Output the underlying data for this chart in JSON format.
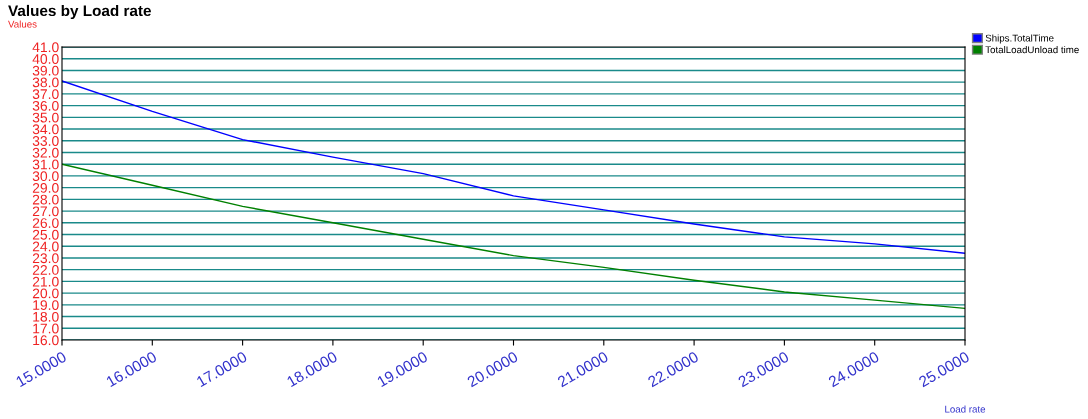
{
  "chart_data": {
    "type": "line",
    "title": "Values by Load rate",
    "ylabel": "Values",
    "xlabel": "Load rate",
    "x": [
      15,
      16,
      17,
      18,
      19,
      20,
      21,
      22,
      23,
      24,
      25
    ],
    "series": [
      {
        "name": "Ships.TotalTime",
        "color": "#0000ff",
        "values": [
          38.1,
          35.5,
          33.1,
          31.6,
          30.2,
          28.3,
          27.1,
          25.9,
          24.8,
          24.2,
          23.4
        ]
      },
      {
        "name": "TotalLoadUnload time",
        "color": "#008000",
        "values": [
          31.0,
          29.2,
          27.4,
          26.0,
          24.6,
          23.2,
          22.2,
          21.1,
          20.1,
          19.4,
          18.7
        ]
      }
    ],
    "xlim": [
      15,
      25
    ],
    "xticks": [
      {
        "value": 15,
        "label": "15.0000"
      },
      {
        "value": 16,
        "label": "16.0000"
      },
      {
        "value": 17,
        "label": "17.0000"
      },
      {
        "value": 18,
        "label": "18.0000"
      },
      {
        "value": 19,
        "label": "19.0000"
      },
      {
        "value": 20,
        "label": "20.0000"
      },
      {
        "value": 21,
        "label": "21.0000"
      },
      {
        "value": 22,
        "label": "22.0000"
      },
      {
        "value": 23,
        "label": "23.0000"
      },
      {
        "value": 24,
        "label": "24.0000"
      },
      {
        "value": 25,
        "label": "25.0000"
      }
    ],
    "ylim": [
      16,
      41
    ],
    "yticks": [
      {
        "value": 16,
        "label": "16.0"
      },
      {
        "value": 17,
        "label": "17.0"
      },
      {
        "value": 18,
        "label": "18.0"
      },
      {
        "value": 19,
        "label": "19.0"
      },
      {
        "value": 20,
        "label": "20.0"
      },
      {
        "value": 21,
        "label": "21.0"
      },
      {
        "value": 22,
        "label": "22.0"
      },
      {
        "value": 23,
        "label": "23.0"
      },
      {
        "value": 24,
        "label": "24.0"
      },
      {
        "value": 25,
        "label": "25.0"
      },
      {
        "value": 26,
        "label": "26.0"
      },
      {
        "value": 27,
        "label": "27.0"
      },
      {
        "value": 28,
        "label": "28.0"
      },
      {
        "value": 29,
        "label": "29.0"
      },
      {
        "value": 30,
        "label": "30.0"
      },
      {
        "value": 31,
        "label": "31.0"
      },
      {
        "value": 32,
        "label": "32.0"
      },
      {
        "value": 33,
        "label": "33.0"
      },
      {
        "value": 34,
        "label": "34.0"
      },
      {
        "value": 35,
        "label": "35.0"
      },
      {
        "value": 36,
        "label": "36.0"
      },
      {
        "value": 37,
        "label": "37.0"
      },
      {
        "value": 38,
        "label": "38.0"
      },
      {
        "value": 39,
        "label": "39.0"
      },
      {
        "value": 40,
        "label": "40.0"
      },
      {
        "value": 41,
        "label": "41.0"
      }
    ],
    "grid": "y",
    "legend": "top right",
    "marker": "none",
    "line_style": "solid"
  }
}
